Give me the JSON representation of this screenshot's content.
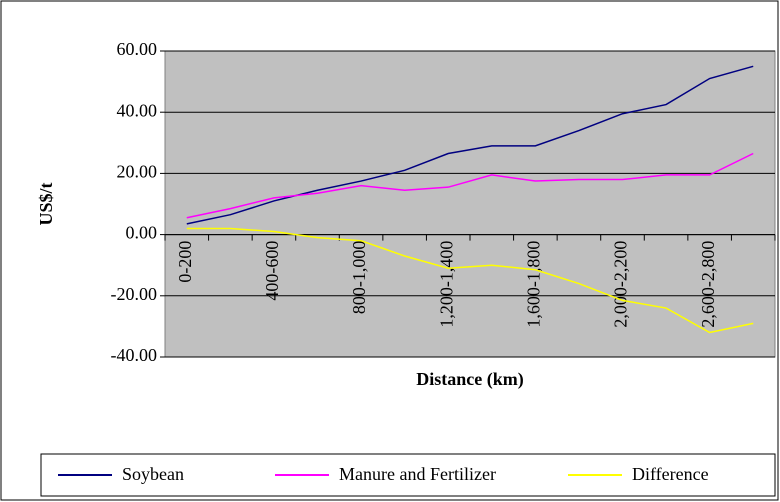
{
  "chart_data": {
    "type": "line",
    "xlabel": "Distance (km)",
    "ylabel": "US$/t",
    "categories": [
      "0-200",
      null,
      "400-600",
      null,
      "800-1,000",
      null,
      "1,200-1,400",
      null,
      "1,600-1,800",
      null,
      "2,000-2,200",
      null,
      "2,600-2,800",
      null
    ],
    "series": [
      {
        "name": "Soybean",
        "color": "#000080",
        "values": [
          3.5,
          6.5,
          11,
          14.5,
          17.5,
          21,
          26.5,
          29,
          29,
          34,
          39.5,
          42.5,
          51,
          55
        ]
      },
      {
        "name": "Manure and Fertilizer",
        "color": "#ff00ff",
        "values": [
          5.5,
          8.5,
          12,
          13.5,
          16,
          14.5,
          15.5,
          19.5,
          17.5,
          18,
          18,
          19.5,
          19.5,
          26.5
        ]
      },
      {
        "name": "Difference",
        "color": "#ffff00",
        "values": [
          2,
          2,
          1,
          -1,
          -2,
          -7,
          -11,
          -10,
          -11.5,
          -16,
          -21.5,
          -24,
          -32,
          -29
        ]
      }
    ],
    "ylim": [
      -40,
      60
    ],
    "yticks": [
      {
        "value": -40,
        "label": "-40.00"
      },
      {
        "value": -20,
        "label": "-20.00"
      },
      {
        "value": 0,
        "label": "0.00"
      },
      {
        "value": 20,
        "label": "20.00"
      },
      {
        "value": 40,
        "label": "40.00"
      },
      {
        "value": 60,
        "label": "60.00"
      }
    ],
    "grid": true,
    "legend": "bottom"
  }
}
